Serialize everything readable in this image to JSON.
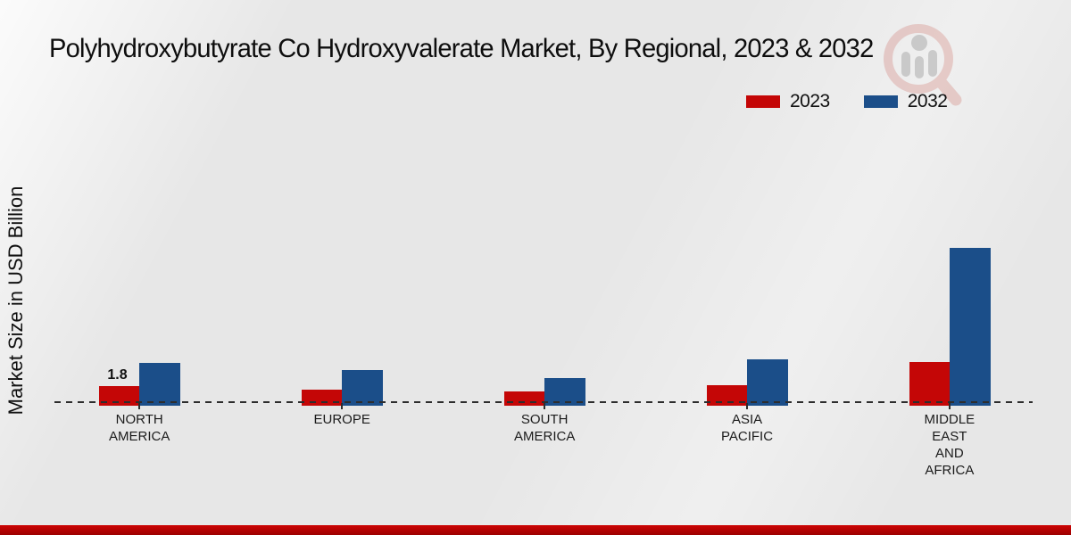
{
  "title": "Polyhydroxybutyrate Co Hydroxyvalerate Market, By Regional, 2023 & 2032",
  "ylabel": "Market Size in USD Billion",
  "legend": {
    "items": [
      {
        "label": "2023",
        "color": "#c40606"
      },
      {
        "label": "2032",
        "color": "#1b4e89"
      }
    ]
  },
  "colors": {
    "series_2023": "#c40606",
    "series_2032": "#1b4e89",
    "background": "#e7e7e7",
    "footer_strip": "#b30202",
    "axis_line": "#2d2d2d",
    "text": "#111111",
    "watermark_red": "#c0392b",
    "watermark_grey": "#8f8f8f"
  },
  "chart_data": {
    "type": "bar",
    "title": "Polyhydroxybutyrate Co Hydroxyvalerate Market, By Regional, 2023 & 2032",
    "xlabel": "",
    "ylabel": "Market Size in USD Billion",
    "categories": [
      "NORTH AMERICA",
      "EUROPE",
      "SOUTH AMERICA",
      "ASIA PACIFIC",
      "MIDDLE EAST AND AFRICA"
    ],
    "series": [
      {
        "name": "2023",
        "color": "#c40606",
        "values": [
          1.8,
          1.5,
          1.3,
          1.9,
          4.0
        ]
      },
      {
        "name": "2032",
        "color": "#1b4e89",
        "values": [
          3.9,
          3.3,
          2.5,
          4.3,
          14.5
        ]
      }
    ],
    "data_labels": [
      {
        "category_index": 0,
        "series_index": 0,
        "text": "1.8"
      }
    ],
    "ylim": [
      0,
      15
    ],
    "grid": false,
    "legend_position": "top-right",
    "baseline_style": "dashed"
  }
}
